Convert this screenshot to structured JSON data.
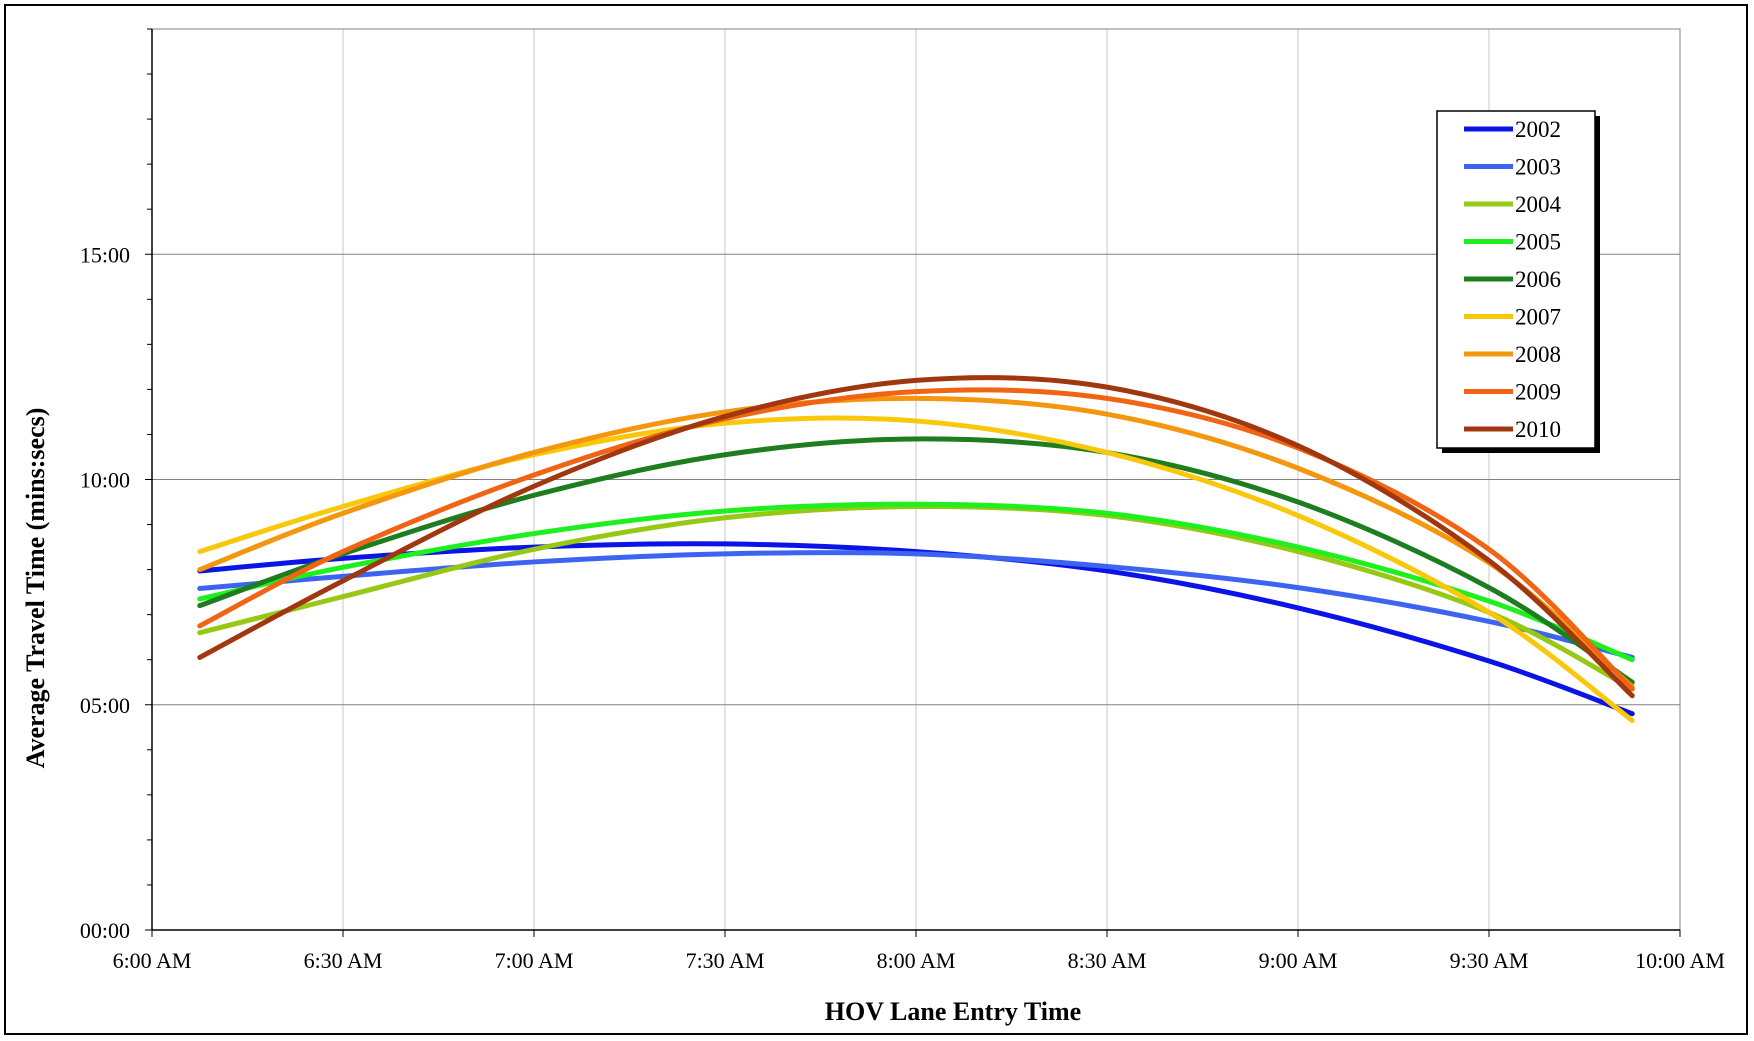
{
  "chart_data": {
    "type": "line",
    "xlabel": "HOV Lane Entry Time",
    "ylabel": "Average Travel Time (mins:secs)",
    "xlim": [
      0,
      240
    ],
    "ylim": [
      0,
      20
    ],
    "x_ticks": [
      {
        "value": 0,
        "label": "6:00 AM"
      },
      {
        "value": 30,
        "label": "6:30 AM"
      },
      {
        "value": 60,
        "label": "7:00 AM"
      },
      {
        "value": 90,
        "label": "7:30 AM"
      },
      {
        "value": 120,
        "label": "8:00 AM"
      },
      {
        "value": 150,
        "label": "8:30 AM"
      },
      {
        "value": 180,
        "label": "9:00 AM"
      },
      {
        "value": 210,
        "label": "9:30 AM"
      },
      {
        "value": 240,
        "label": "10:00 AM"
      }
    ],
    "y_ticks": [
      {
        "value": 0,
        "label": "00:00"
      },
      {
        "value": 5,
        "label": "05:00"
      },
      {
        "value": 10,
        "label": "10:00"
      },
      {
        "value": 15,
        "label": "15:00"
      }
    ],
    "grid": true,
    "legend_position": "top-right",
    "x": [
      7.5,
      30,
      60,
      90,
      120,
      150,
      180,
      210,
      232.5
    ],
    "series": [
      {
        "name": "2002",
        "color": "#0A14E6",
        "values": [
          7.97,
          8.25,
          8.5,
          8.57,
          8.4,
          7.97,
          7.15,
          5.97,
          4.8
        ]
      },
      {
        "name": "2003",
        "color": "#3C64F0",
        "values": [
          7.58,
          7.85,
          8.17,
          8.35,
          8.35,
          8.07,
          7.6,
          6.85,
          6.05
        ]
      },
      {
        "name": "2004",
        "color": "#96C814",
        "values": [
          6.6,
          7.4,
          8.45,
          9.15,
          9.4,
          9.2,
          8.4,
          7.05,
          5.35
        ]
      },
      {
        "name": "2005",
        "color": "#1EF01E",
        "values": [
          7.35,
          8.05,
          8.8,
          9.3,
          9.45,
          9.25,
          8.5,
          7.3,
          6.0
        ]
      },
      {
        "name": "2006",
        "color": "#1E7D1E",
        "values": [
          7.2,
          8.35,
          9.65,
          10.55,
          10.9,
          10.6,
          9.5,
          7.6,
          5.5
        ]
      },
      {
        "name": "2007",
        "color": "#FAC80A",
        "values": [
          8.4,
          9.4,
          10.55,
          11.25,
          11.3,
          10.6,
          9.2,
          7.05,
          4.65
        ]
      },
      {
        "name": "2008",
        "color": "#F5960F",
        "values": [
          8.0,
          9.25,
          10.6,
          11.5,
          11.8,
          11.45,
          10.25,
          8.15,
          5.4
        ]
      },
      {
        "name": "2009",
        "color": "#F06414",
        "values": [
          6.75,
          8.4,
          10.1,
          11.35,
          11.95,
          11.8,
          10.7,
          8.45,
          5.35
        ]
      },
      {
        "name": "2010",
        "color": "#A0370F",
        "values": [
          6.05,
          7.75,
          9.85,
          11.4,
          12.2,
          12.05,
          10.75,
          8.2,
          5.2
        ]
      }
    ]
  }
}
